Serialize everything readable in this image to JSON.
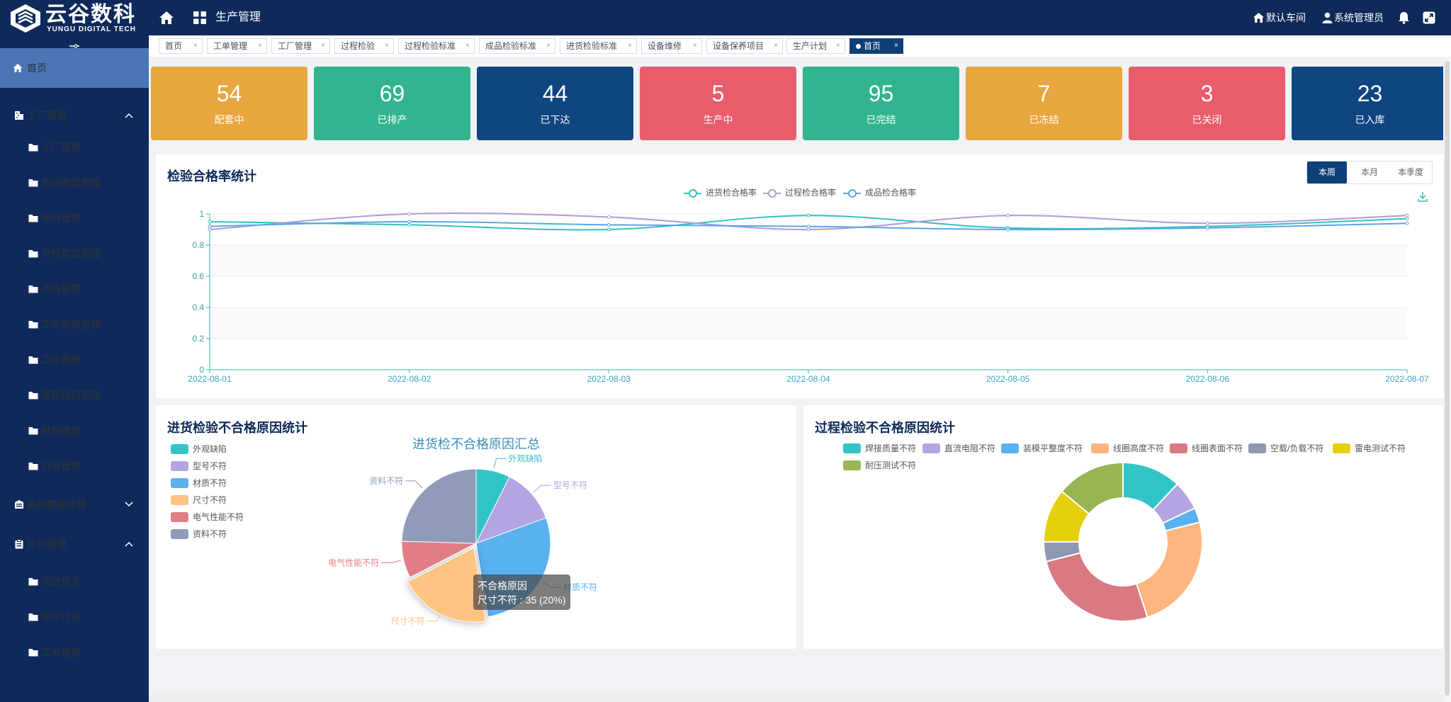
{
  "header": {
    "logo_cn": "云谷数科",
    "logo_en": "YUNGU DIGITAL TECH",
    "module_title": "生产管理",
    "workshop": "默认车间",
    "user": "系统管理员",
    "icons": [
      "home-icon",
      "apps-icon",
      "workshop-home-icon",
      "user-icon",
      "bell-icon",
      "fullscreen-icon"
    ]
  },
  "sidebar": {
    "items": [
      {
        "label": "首页",
        "icon": "home-icon"
      },
      {
        "label": "工厂建模",
        "icon": "building-icon"
      },
      {
        "label": "工厂管理",
        "icon": "folder-icon"
      },
      {
        "label": "车间类型管理",
        "icon": "folder-icon"
      },
      {
        "label": "车间管理",
        "icon": "folder-icon"
      },
      {
        "label": "产线类型管理",
        "icon": "folder-icon"
      },
      {
        "label": "产线管理",
        "icon": "folder-icon"
      },
      {
        "label": "工位类型管理",
        "icon": "folder-icon"
      },
      {
        "label": "工位管理",
        "icon": "folder-icon"
      },
      {
        "label": "库存组织管理",
        "icon": "folder-icon"
      },
      {
        "label": "班制管理",
        "icon": "folder-icon"
      },
      {
        "label": "日历管理",
        "icon": "folder-icon"
      },
      {
        "label": "基础数据管理",
        "icon": "database-icon"
      },
      {
        "label": "计划管理",
        "icon": "clipboard-icon"
      },
      {
        "label": "项目任务",
        "icon": "folder-icon"
      },
      {
        "label": "生产计划",
        "icon": "folder-icon"
      },
      {
        "label": "工单管理",
        "icon": "folder-icon"
      }
    ]
  },
  "tabs": [
    "首页",
    "工单管理",
    "工厂管理",
    "过程检验",
    "过程检验标准",
    "成品检验标准",
    "进货检验标准",
    "设备维修",
    "设备保养项目",
    "生产计划",
    "首页"
  ],
  "stats": [
    {
      "value": "54",
      "label": "配套中",
      "color": "#e8a63f"
    },
    {
      "value": "69",
      "label": "已排产",
      "color": "#31b48f"
    },
    {
      "value": "44",
      "label": "已下达",
      "color": "#0f4580"
    },
    {
      "value": "5",
      "label": "生产中",
      "color": "#e85d6b"
    },
    {
      "value": "95",
      "label": "已完结",
      "color": "#31b48f"
    },
    {
      "value": "7",
      "label": "已冻结",
      "color": "#e8a63f"
    },
    {
      "value": "3",
      "label": "已关闭",
      "color": "#e85d6b"
    },
    {
      "value": "23",
      "label": "已入库",
      "color": "#0f4580"
    }
  ],
  "line_panel": {
    "title": "检验合格率统计",
    "periods": [
      "本周",
      "本月",
      "本季度"
    ]
  },
  "pie_panel": {
    "title": "进货检验不合格原因统计",
    "tooltip_title": "不合格原因",
    "tooltip_value": "尺寸不符 : 35 (20%)"
  },
  "donut_panel": {
    "title": "过程检验不合格原因统计"
  },
  "chart_data": [
    {
      "type": "line",
      "title": "检验合格率统计",
      "x": [
        "2022-08-01",
        "2022-08-02",
        "2022-08-03",
        "2022-08-04",
        "2022-08-05",
        "2022-08-06",
        "2022-08-07"
      ],
      "ylim": [
        0,
        1
      ],
      "yticks": [
        "0",
        "0.2",
        "0.4",
        "0.6",
        "0.8",
        "1"
      ],
      "legend_position": "top-center",
      "series": [
        {
          "name": "进货检合格率",
          "color": "#37c0c0",
          "values": [
            0.95,
            0.93,
            0.9,
            0.99,
            0.91,
            0.92,
            0.97
          ]
        },
        {
          "name": "过程检合格率",
          "color": "#b29ad6",
          "values": [
            0.9,
            1.0,
            0.98,
            0.9,
            0.99,
            0.94,
            0.99
          ]
        },
        {
          "name": "成品检合格率",
          "color": "#5aa6e6",
          "values": [
            0.92,
            0.95,
            0.93,
            0.92,
            0.9,
            0.91,
            0.94
          ]
        }
      ]
    },
    {
      "type": "pie",
      "title": "进货检不合格原因汇总",
      "legend_position": "left",
      "slices": [
        {
          "label": "外观缺陷",
          "value": 13,
          "color": "#33c4c8"
        },
        {
          "label": "型号不符",
          "value": 21,
          "color": "#b4a4e2"
        },
        {
          "label": "材质不符",
          "value": 49,
          "color": "#5ab1ef"
        },
        {
          "label": "尺寸不符",
          "value": 35,
          "color": "#ffc382"
        },
        {
          "label": "电气性能不符",
          "value": 14,
          "color": "#e07d85"
        },
        {
          "label": "资料不符",
          "value": 43,
          "color": "#8f9bb8"
        }
      ]
    },
    {
      "type": "pie",
      "title": "过程检验不合格原因统计",
      "legend_position": "top",
      "slices": [
        {
          "label": "焊接质量不符",
          "value": 12,
          "color": "#33c4c8"
        },
        {
          "label": "直流电阻不符",
          "value": 6,
          "color": "#b4a4e2"
        },
        {
          "label": "装模平整度不符",
          "value": 3,
          "color": "#5ab1ef"
        },
        {
          "label": "线圈高度不符",
          "value": 24,
          "color": "#ffb57f"
        },
        {
          "label": "线圈表面不符",
          "value": 26,
          "color": "#d87a80"
        },
        {
          "label": "空载/负载不符",
          "value": 4,
          "color": "#8d98b3"
        },
        {
          "label": "雷电测试不符",
          "value": 11,
          "color": "#e5cf0d"
        },
        {
          "label": "耐压测试不符",
          "value": 14,
          "color": "#97b552"
        }
      ]
    }
  ]
}
